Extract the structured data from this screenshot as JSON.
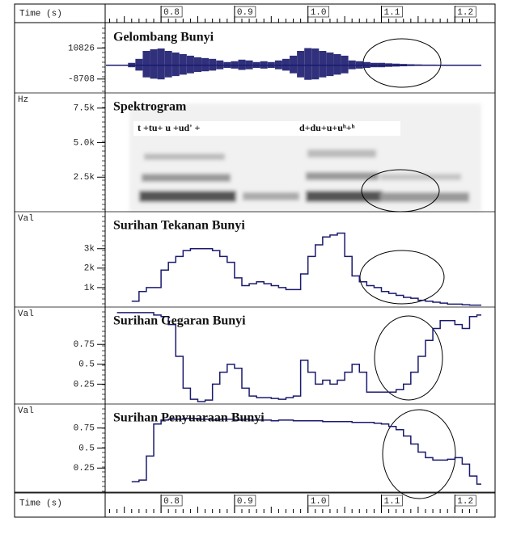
{
  "time_axis": {
    "label": "Time (s)",
    "xlim": [
      0.725,
      1.236
    ],
    "xticks": [
      0.8,
      0.9,
      {
        "value": 1,
        "label": "1.0"
      },
      1.1,
      1.2
    ]
  },
  "chart_data": [
    {
      "type": "waveform",
      "title": "Gelombang Bunyi",
      "color": "#1a1a6e",
      "ylim": [
        -17450,
        26300
      ],
      "yticks": [
        10826,
        -8708
      ],
      "x": [
        0.75,
        0.76,
        0.77,
        0.78,
        0.79,
        0.8,
        0.81,
        0.82,
        0.83,
        0.84,
        0.85,
        0.86,
        0.87,
        0.88,
        0.89,
        0.9,
        0.91,
        0.92,
        0.93,
        0.94,
        0.95,
        0.96,
        0.97,
        0.98,
        0.99,
        1.0,
        1.01,
        1.02,
        1.03,
        1.04,
        1.05,
        1.06,
        1.07,
        1.08,
        1.09,
        1.1,
        1.11,
        1.12,
        1.13,
        1.14,
        1.15,
        1.16,
        1.17,
        1.18,
        1.19,
        1.2,
        1.21,
        1.22,
        1.23
      ],
      "values": [
        300,
        1500,
        4000,
        9000,
        10000,
        10500,
        9000,
        8000,
        7000,
        6000,
        5000,
        4500,
        4000,
        3000,
        2000,
        2500,
        3500,
        3000,
        2000,
        2500,
        2000,
        3000,
        4000,
        6000,
        9000,
        10800,
        10500,
        9000,
        8000,
        7000,
        6000,
        3000,
        2500,
        2000,
        1500,
        1500,
        1200,
        1000,
        800,
        600,
        500,
        400,
        400,
        300,
        300,
        300,
        300,
        300,
        300
      ]
    },
    {
      "type": "spectrogram",
      "title": "Spektrogram",
      "y_label": "Hz",
      "ylim": [
        0,
        8600
      ],
      "yticks": [
        {
          "value": 7500,
          "label": "7.5k"
        },
        {
          "value": 5000,
          "label": "5.0k"
        },
        {
          "value": 2500,
          "label": "2.5k"
        }
      ],
      "annotations": [
        "t +tu+ u  +ud' +",
        "d+du+u+uʰ+ʰ"
      ]
    },
    {
      "type": "step",
      "title": "Surihan Tekanan Bunyi",
      "y_label": "Val",
      "color": "#1a1a6e",
      "ylim": [
        0,
        4900
      ],
      "yticks": [
        {
          "value": 3000,
          "label": "3k"
        },
        {
          "value": 2000,
          "label": "2k"
        },
        {
          "value": 1000,
          "label": "1k"
        }
      ],
      "x": [
        0.76,
        0.77,
        0.78,
        0.79,
        0.8,
        0.81,
        0.82,
        0.83,
        0.84,
        0.85,
        0.86,
        0.87,
        0.88,
        0.89,
        0.9,
        0.91,
        0.92,
        0.93,
        0.94,
        0.95,
        0.96,
        0.97,
        0.98,
        0.99,
        1.0,
        1.01,
        1.02,
        1.03,
        1.04,
        1.05,
        1.06,
        1.07,
        1.08,
        1.09,
        1.1,
        1.11,
        1.12,
        1.13,
        1.14,
        1.15,
        1.16,
        1.17,
        1.18,
        1.19,
        1.2,
        1.21,
        1.22,
        1.23
      ],
      "values": [
        300,
        800,
        1000,
        1000,
        1900,
        2300,
        2600,
        2900,
        3000,
        3000,
        3000,
        2900,
        2600,
        2300,
        1500,
        1100,
        1200,
        1300,
        1200,
        1100,
        1000,
        900,
        900,
        1700,
        2600,
        3200,
        3600,
        3700,
        3800,
        2600,
        1600,
        1300,
        1100,
        1000,
        800,
        700,
        600,
        500,
        450,
        350,
        300,
        250,
        200,
        150,
        150,
        120,
        100,
        100
      ]
    },
    {
      "type": "step",
      "title": "Surihan Gegaran Bunyi",
      "y_label": "Val",
      "color": "#1a1a6e",
      "ylim": [
        0,
        1.22
      ],
      "yticks": [
        0.75,
        0.5,
        0.25
      ],
      "x": [
        0.74,
        0.75,
        0.76,
        0.77,
        0.78,
        0.79,
        0.8,
        0.81,
        0.82,
        0.83,
        0.84,
        0.85,
        0.86,
        0.87,
        0.88,
        0.89,
        0.9,
        0.91,
        0.92,
        0.93,
        0.94,
        0.95,
        0.96,
        0.97,
        0.98,
        0.99,
        1.0,
        1.01,
        1.02,
        1.03,
        1.04,
        1.05,
        1.06,
        1.07,
        1.08,
        1.09,
        1.1,
        1.11,
        1.12,
        1.13,
        1.14,
        1.15,
        1.16,
        1.17,
        1.18,
        1.19,
        1.2,
        1.21,
        1.22,
        1.23
      ],
      "values": [
        1.15,
        1.15,
        1.15,
        1.15,
        1.15,
        1.12,
        1.1,
        1.0,
        0.6,
        0.2,
        0.06,
        0.03,
        0.05,
        0.25,
        0.4,
        0.5,
        0.45,
        0.2,
        0.1,
        0.08,
        0.08,
        0.07,
        0.06,
        0.08,
        0.1,
        0.55,
        0.4,
        0.25,
        0.3,
        0.25,
        0.3,
        0.4,
        0.5,
        0.4,
        0.15,
        0.15,
        0.15,
        0.15,
        0.18,
        0.25,
        0.4,
        0.6,
        0.8,
        0.95,
        1.05,
        1.05,
        1.0,
        0.95,
        1.1,
        1.12
      ]
    },
    {
      "type": "step",
      "title": "Surihan Penyuaraan Bunyi",
      "y_label": "Val",
      "color": "#1a1a6e",
      "ylim": [
        -0.05,
        1.05
      ],
      "yticks": [
        0.75,
        0.5,
        0.25
      ],
      "x": [
        0.76,
        0.77,
        0.78,
        0.79,
        0.8,
        0.81,
        0.82,
        0.83,
        0.84,
        0.85,
        0.86,
        0.87,
        0.88,
        0.89,
        0.9,
        0.91,
        0.92,
        0.93,
        0.94,
        0.95,
        0.96,
        0.97,
        0.98,
        0.99,
        1.0,
        1.01,
        1.02,
        1.03,
        1.04,
        1.05,
        1.06,
        1.07,
        1.08,
        1.09,
        1.1,
        1.11,
        1.12,
        1.13,
        1.14,
        1.15,
        1.16,
        1.17,
        1.18,
        1.19,
        1.2,
        1.21,
        1.22,
        1.23
      ],
      "values": [
        0.08,
        0.1,
        0.4,
        0.8,
        0.85,
        0.86,
        0.86,
        0.87,
        0.87,
        0.86,
        0.86,
        0.85,
        0.86,
        0.86,
        0.85,
        0.86,
        0.85,
        0.85,
        0.85,
        0.84,
        0.85,
        0.85,
        0.84,
        0.84,
        0.84,
        0.84,
        0.83,
        0.83,
        0.83,
        0.83,
        0.82,
        0.82,
        0.82,
        0.81,
        0.8,
        0.77,
        0.73,
        0.65,
        0.55,
        0.45,
        0.38,
        0.35,
        0.35,
        0.36,
        0.38,
        0.3,
        0.15,
        0.05
      ]
    }
  ]
}
